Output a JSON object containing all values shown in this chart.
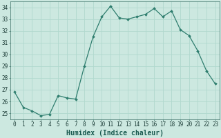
{
  "xlabel": "Humidex (Indice chaleur)",
  "x": [
    0,
    1,
    2,
    3,
    4,
    5,
    6,
    7,
    8,
    9,
    10,
    11,
    12,
    13,
    14,
    15,
    16,
    17,
    18,
    19,
    20,
    21,
    22,
    23
  ],
  "y": [
    26.8,
    25.5,
    25.2,
    24.8,
    24.9,
    26.5,
    26.3,
    26.2,
    29.0,
    31.5,
    33.2,
    34.1,
    33.1,
    33.0,
    33.2,
    33.4,
    33.9,
    33.2,
    33.7,
    32.1,
    31.6,
    30.3,
    28.6,
    27.5
  ],
  "line_color": "#2e7d6e",
  "marker_color": "#2e7d6e",
  "bg_color": "#cce8e0",
  "grid_color": "#b0d8ce",
  "ylim": [
    24.5,
    34.5
  ],
  "yticks": [
    25,
    26,
    27,
    28,
    29,
    30,
    31,
    32,
    33,
    34
  ],
  "xticks": [
    0,
    1,
    2,
    3,
    4,
    5,
    6,
    7,
    8,
    9,
    10,
    11,
    12,
    13,
    14,
    15,
    16,
    17,
    18,
    19,
    20,
    21,
    22,
    23
  ],
  "tick_fontsize": 5.5,
  "xlabel_fontsize": 7.0,
  "marker_size": 2.0,
  "line_width": 0.9
}
